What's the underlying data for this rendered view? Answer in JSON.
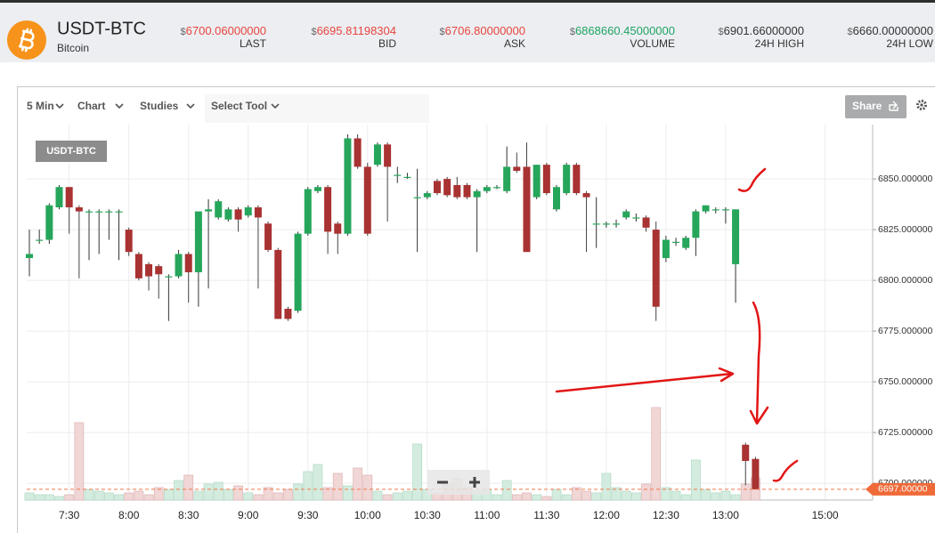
{
  "header": {
    "symbol": "USDT-BTC",
    "name": "Bitcoin",
    "currency": "$",
    "stats": [
      {
        "value": "6700.06000000",
        "label": "LAST",
        "color": "#e8453c"
      },
      {
        "value": "6695.81198304",
        "label": "BID",
        "color": "#e8453c"
      },
      {
        "value": "6706.80000000",
        "label": "ASK",
        "color": "#e8453c"
      },
      {
        "value": "6868660.45000000",
        "label": "VOLUME",
        "color": "#1fa463"
      },
      {
        "value": "6901.66000000",
        "label": "24H HIGH",
        "color": "#333333"
      },
      {
        "value": "6660.00000000",
        "label": "24H LOW",
        "color": "#333333"
      }
    ]
  },
  "toolbar": {
    "interval": "5 Min",
    "chart": "Chart",
    "studies": "Studies",
    "tool": "Select Tool",
    "share": "Share"
  },
  "chart_data": {
    "type": "candlestick",
    "title": "USDT-BTC",
    "categories": [
      null,
      null,
      null,
      null,
      "7:30",
      null,
      null,
      null,
      null,
      null,
      "8:00",
      null,
      null,
      null,
      null,
      null,
      "8:30",
      null,
      null,
      null,
      null,
      null,
      "9:00",
      null,
      null,
      null,
      null,
      null,
      "9:30",
      null,
      null,
      null,
      null,
      null,
      "10:00",
      null,
      null,
      null,
      null,
      null,
      "10:30",
      null,
      null,
      null,
      null,
      null,
      "11:00",
      null,
      null,
      null,
      null,
      null,
      "11:30",
      null,
      null,
      null,
      null,
      null,
      "12:00",
      null,
      null,
      null,
      null,
      null,
      "12:30",
      null,
      null,
      null,
      null,
      null,
      "13:00",
      null,
      null,
      null,
      null,
      null,
      null,
      null,
      null,
      null,
      "15:00"
    ],
    "open": [
      6811,
      6820,
      6820,
      6836,
      6846,
      6836,
      6834,
      6834,
      6834,
      6834,
      6825,
      6813,
      6808,
      6807,
      6802,
      6802,
      6813,
      6804,
      6834,
      6831,
      6830,
      6835,
      6832,
      6836,
      6828,
      6815,
      6786,
      6785,
      6823,
      6844,
      6846,
      6828,
      6823,
      6870,
      6856,
      6857,
      6867,
      6852,
      6851,
      6841,
      6841,
      6849,
      6850,
      6847,
      6847,
      6841,
      6844,
      6846,
      6844,
      6856,
      6856,
      6841,
      6857,
      6835,
      6843,
      6857,
      6843,
      6828,
      6828,
      6828,
      6831,
      6831,
      6831,
      6825,
      6811,
      6819,
      6816,
      6821,
      6834,
      6835,
      6835,
      6808,
      6719,
      6712,
      null,
      null,
      null,
      null,
      null,
      null,
      null
    ],
    "high": [
      6825,
      6825,
      6838,
      6847,
      6846,
      6837,
      6835,
      6835,
      6835,
      6835,
      6826,
      6814,
      6809,
      6808,
      6803,
      6815,
      6814,
      6834,
      6840,
      6840,
      6836,
      6836,
      6837,
      6837,
      6829,
      6816,
      6787,
      6824,
      6846,
      6847,
      6847,
      6829,
      6872,
      6872,
      6858,
      6868,
      6868,
      6856,
      6853,
      6855,
      6844,
      6850,
      6851,
      6851,
      6848,
      6845,
      6847,
      6847,
      6866,
      6863,
      6868,
      6857,
      6858,
      6847,
      6858,
      6858,
      6844,
      6841,
      6829,
      6830,
      6835,
      6833,
      6832,
      6829,
      6822,
      6821,
      6822,
      6835,
      6837,
      6836,
      6836,
      6835,
      6720,
      6713,
      null,
      null,
      null,
      null,
      null,
      null,
      null
    ],
    "low": [
      6802,
      6818,
      6818,
      6835,
      6823,
      6801,
      6810,
      6813,
      6820,
      6810,
      6812,
      6800,
      6795,
      6791,
      6780,
      6801,
      6789,
      6787,
      6796,
      6830,
      6829,
      6824,
      6831,
      6796,
      6814,
      6781,
      6780,
      6784,
      6822,
      6843,
      6813,
      6813,
      6822,
      6855,
      6822,
      6856,
      6829,
      6848,
      6850,
      6814,
      6840,
      6842,
      6841,
      6840,
      6840,
      6814,
      6843,
      6845,
      6843,
      6853,
      6814,
      6840,
      6842,
      6834,
      6842,
      6842,
      6814,
      6816,
      6826,
      6826,
      6830,
      6829,
      6824,
      6780,
      6809,
      6817,
      6815,
      6812,
      6833,
      6833,
      6828,
      6789,
      6699,
      6697,
      null,
      null,
      null,
      null,
      null,
      null,
      null
    ],
    "close": [
      6813,
      6820,
      6837,
      6846,
      6836,
      6834,
      6834,
      6834,
      6834,
      6834,
      6814,
      6801,
      6802,
      6803,
      6802,
      6813,
      6804,
      6834,
      6835,
      6839,
      6835,
      6830,
      6836,
      6831,
      6815,
      6781,
      6781,
      6823,
      6845,
      6846,
      6824,
      6823,
      6870,
      6856,
      6823,
      6867,
      6856,
      6852,
      6851,
      6841,
      6843,
      6843,
      6842,
      6841,
      6841,
      6844,
      6846,
      6846,
      6856,
      6854,
      6814,
      6857,
      6843,
      6846,
      6857,
      6843,
      6841,
      6828,
      6828,
      6828,
      6834,
      6831,
      6826,
      6787,
      6820,
      6819,
      6821,
      6834,
      6837,
      6835,
      6835,
      6835,
      6711,
      6697,
      null,
      null,
      null,
      null,
      null,
      null,
      null
    ],
    "volume": [
      8,
      6,
      6,
      4,
      6,
      87,
      12,
      10,
      8,
      6,
      8,
      10,
      6,
      14,
      12,
      22,
      28,
      10,
      18,
      20,
      12,
      16,
      8,
      6,
      14,
      8,
      12,
      18,
      32,
      40,
      14,
      30,
      16,
      36,
      28,
      10,
      6,
      8,
      10,
      63,
      12,
      8,
      18,
      24,
      14,
      10,
      12,
      6,
      22,
      6,
      8,
      6,
      4,
      12,
      6,
      14,
      10,
      8,
      30,
      14,
      10,
      8,
      18,
      104,
      14,
      10,
      6,
      45,
      12,
      8,
      10,
      6,
      18,
      25,
      null,
      null,
      null,
      null,
      null,
      null,
      null
    ],
    "volume_ylim": [
      0,
      110
    ],
    "up_color": "#26a65b",
    "down_color": "#a93232",
    "up_volume_color": "#d3ecdf",
    "down_volume_color": "#f1d6d6",
    "ylim": [
      6691.7,
      6876.8
    ],
    "yticks": [
      {
        "value": 6700,
        "label": "6700.000000"
      },
      {
        "value": 6725,
        "label": "6725.000000"
      },
      {
        "value": 6750,
        "label": "6750.000000"
      },
      {
        "value": 6775,
        "label": "6775.000000"
      },
      {
        "value": 6800,
        "label": "6800.000000"
      },
      {
        "value": 6825,
        "label": "6825.000000"
      },
      {
        "value": 6850,
        "label": "6850.000000"
      }
    ],
    "last_price": {
      "value": 6697,
      "label": "6697.00000"
    },
    "grid": true
  }
}
